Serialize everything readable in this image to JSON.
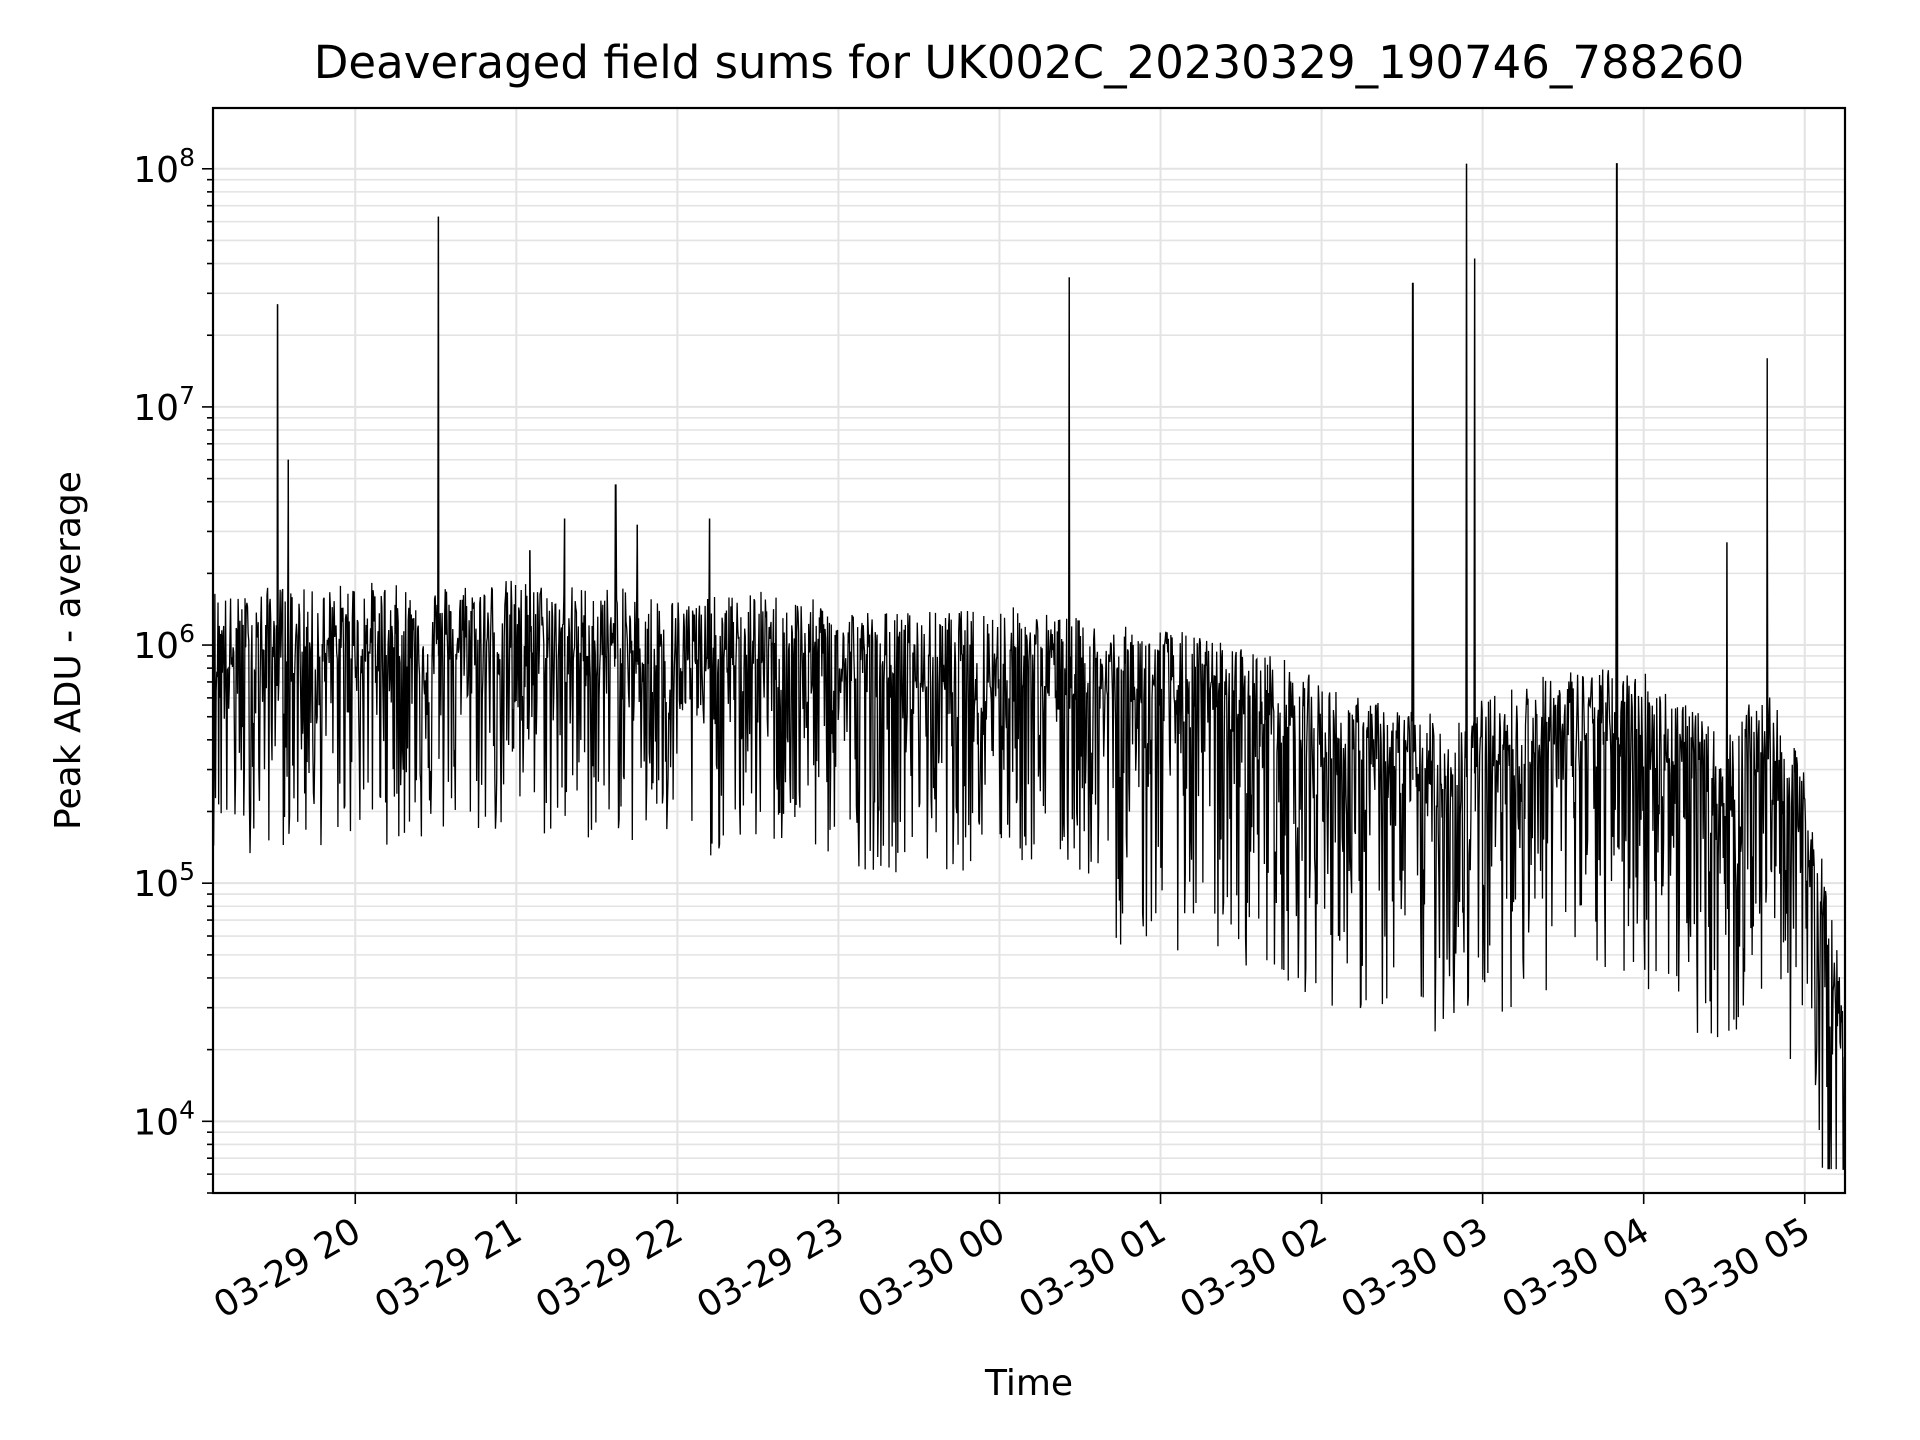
{
  "chart_data": {
    "type": "line",
    "title": "Deaveraged field sums for UK002C_20230329_190746_788260",
    "xlabel": "Time",
    "ylabel": "Peak ADU - average",
    "yscale": "log",
    "ylim": [
      5000,
      180000000
    ],
    "xlim": [
      "2023-03-29 19:07",
      "2023-03-30 05:15"
    ],
    "grid": true,
    "line_color": "#000000",
    "grid_color": "#e3e3e3",
    "x_tick_labels": [
      "03-29 20",
      "03-29 21",
      "03-29 22",
      "03-29 23",
      "03-30 00",
      "03-30 01",
      "03-30 02",
      "03-30 03",
      "03-30 04",
      "03-30 05"
    ],
    "y_ticks": [
      {
        "value": 10000,
        "base": "10",
        "exp": "4"
      },
      {
        "value": 100000,
        "base": "10",
        "exp": "5"
      },
      {
        "value": 1000000,
        "base": "10",
        "exp": "6"
      },
      {
        "value": 10000000,
        "base": "10",
        "exp": "7"
      },
      {
        "value": 100000000,
        "base": "10",
        "exp": "8"
      }
    ],
    "series": [
      {
        "x": [
          "2023-03-29 19:07",
          "2023-03-29 19:15",
          "2023-03-29 19:30",
          "2023-03-29 19:45",
          "2023-03-29 20:00",
          "2023-03-29 20:15",
          "2023-03-29 20:30",
          "2023-03-29 20:45",
          "2023-03-29 21:00",
          "2023-03-29 21:15",
          "2023-03-29 21:30",
          "2023-03-29 21:45",
          "2023-03-29 22:00",
          "2023-03-29 22:15",
          "2023-03-29 22:30",
          "2023-03-29 22:45",
          "2023-03-29 23:00",
          "2023-03-29 23:15",
          "2023-03-29 23:30",
          "2023-03-29 23:45",
          "2023-03-30 00:00",
          "2023-03-30 00:15",
          "2023-03-30 00:30",
          "2023-03-30 00:45",
          "2023-03-30 01:00",
          "2023-03-30 01:15",
          "2023-03-30 01:30",
          "2023-03-30 01:45",
          "2023-03-30 02:00",
          "2023-03-30 02:15",
          "2023-03-30 02:30",
          "2023-03-30 02:45",
          "2023-03-30 03:00",
          "2023-03-30 03:15",
          "2023-03-30 03:30",
          "2023-03-30 03:45",
          "2023-03-30 04:00",
          "2023-03-30 04:15",
          "2023-03-30 04:30",
          "2023-03-30 04:45",
          "2023-03-30 05:00",
          "2023-03-30 05:10",
          "2023-03-30 05:15"
        ],
        "y": [
          900000,
          800000,
          900000,
          850000,
          950000,
          900000,
          900000,
          950000,
          950000,
          900000,
          900000,
          850000,
          800000,
          800000,
          850000,
          800000,
          750000,
          700000,
          700000,
          700000,
          750000,
          700000,
          650000,
          600000,
          600000,
          550000,
          500000,
          450000,
          350000,
          300000,
          280000,
          250000,
          300000,
          350000,
          400000,
          400000,
          400000,
          300000,
          200000,
          350000,
          150000,
          40000,
          15000
        ],
        "noise_dex": 0.55
      }
    ],
    "spikes": [
      {
        "x": "2023-03-29 19:31",
        "y": 27000000
      },
      {
        "x": "2023-03-29 19:35",
        "y": 6000000
      },
      {
        "x": "2023-03-29 20:31",
        "y": 63000000
      },
      {
        "x": "2023-03-29 21:05",
        "y": 2500000
      },
      {
        "x": "2023-03-29 21:18",
        "y": 3400000
      },
      {
        "x": "2023-03-29 21:37",
        "y": 4700000
      },
      {
        "x": "2023-03-29 21:45",
        "y": 3200000
      },
      {
        "x": "2023-03-29 22:12",
        "y": 3400000
      },
      {
        "x": "2023-03-30 00:26",
        "y": 35000000
      },
      {
        "x": "2023-03-30 02:34",
        "y": 33000000
      },
      {
        "x": "2023-03-30 02:54",
        "y": 105000000
      },
      {
        "x": "2023-03-30 02:57",
        "y": 42000000
      },
      {
        "x": "2023-03-30 03:50",
        "y": 105000000
      },
      {
        "x": "2023-03-30 04:31",
        "y": 2700000
      },
      {
        "x": "2023-03-30 04:46",
        "y": 16000000
      }
    ]
  }
}
